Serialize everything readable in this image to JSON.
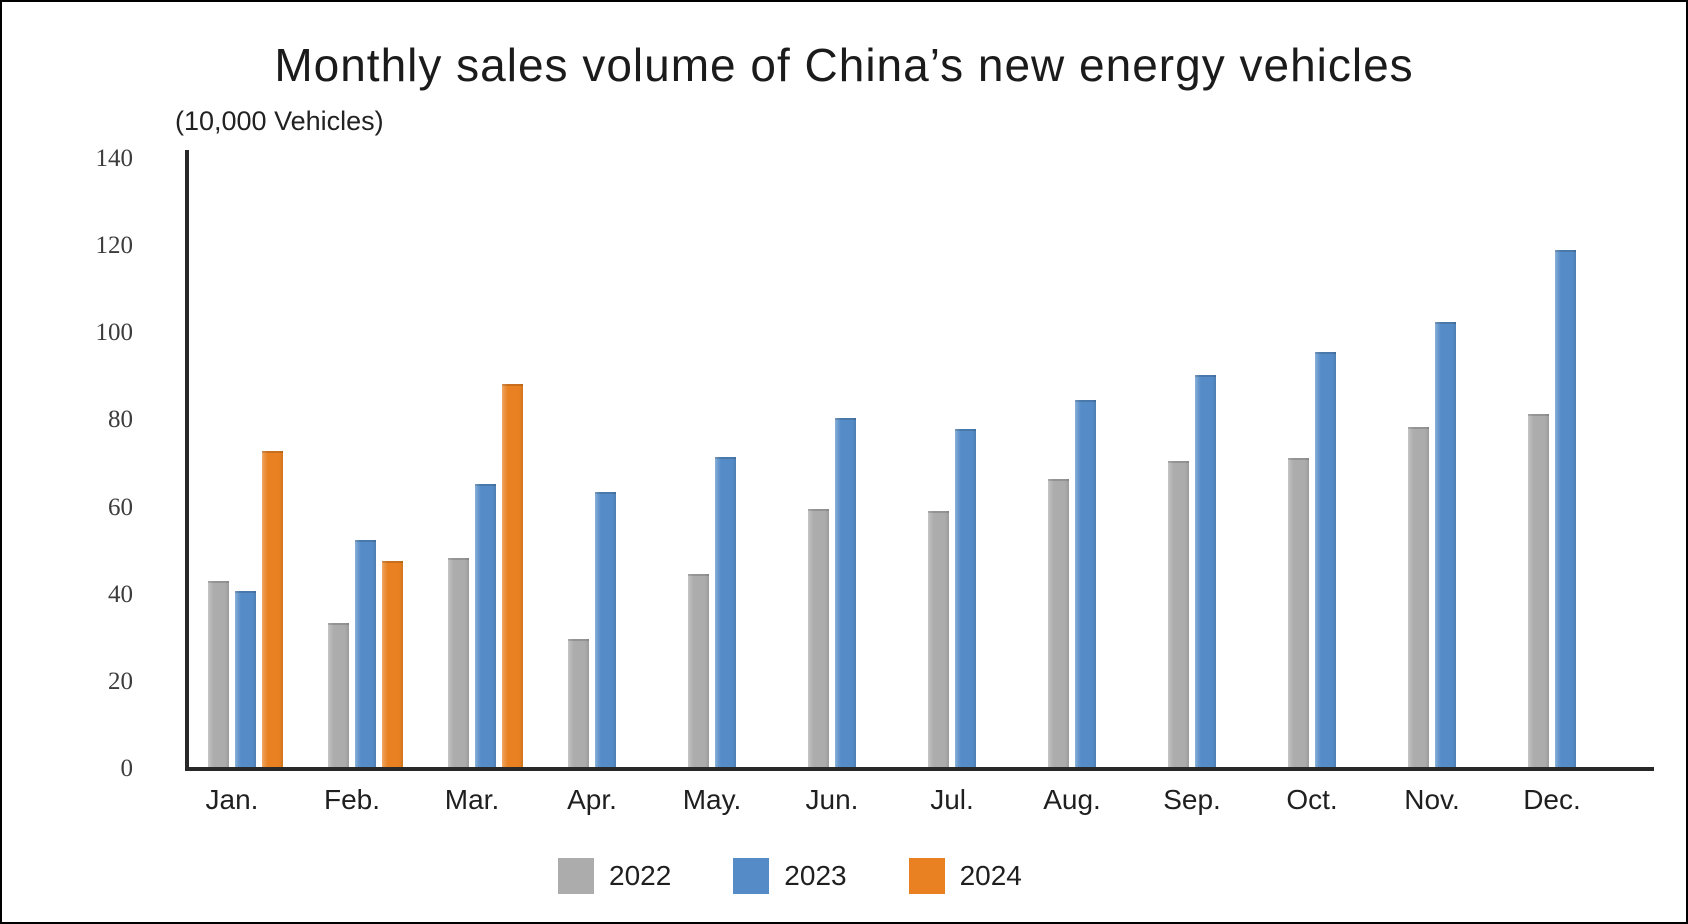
{
  "title": "Monthly sales volume of China’s new energy vehicles",
  "unit_label": "(10,000 Vehicles)",
  "colors": {
    "series_2022": "#ACACAC",
    "series_2023": "#558CC8",
    "series_2024": "#E98122",
    "axis": "#282828",
    "text": "#1F1F1F"
  },
  "legend": [
    {
      "label": "2022",
      "color": "#ACACAC"
    },
    {
      "label": "2023",
      "color": "#558CC8"
    },
    {
      "label": "2024",
      "color": "#E98122"
    }
  ],
  "chart_data": {
    "type": "bar",
    "title": "Monthly sales volume of China’s new energy vehicles",
    "ylabel": "(10,000 Vehicles)",
    "xlabel": "",
    "categories": [
      "Jan.",
      "Feb.",
      "Mar.",
      "Apr.",
      "May.",
      "Jun.",
      "Jul.",
      "Aug.",
      "Sep.",
      "Oct.",
      "Nov.",
      "Dec."
    ],
    "series": [
      {
        "name": "2022",
        "color": "#ACACAC",
        "values": [
          43.1,
          33.4,
          48.4,
          29.9,
          44.7,
          59.6,
          59.3,
          66.6,
          70.8,
          71.4,
          78.6,
          81.4
        ]
      },
      {
        "name": "2023",
        "color": "#558CC8",
        "values": [
          40.8,
          52.5,
          65.3,
          63.6,
          71.7,
          80.6,
          78.0,
          84.6,
          90.4,
          95.6,
          102.6,
          119.1
        ]
      },
      {
        "name": "2024",
        "color": "#E98122",
        "values": [
          72.9,
          47.7,
          88.3,
          null,
          null,
          null,
          null,
          null,
          null,
          null,
          null,
          null
        ]
      }
    ],
    "ylim": [
      0,
      140
    ],
    "yticks": [
      0,
      20,
      40,
      60,
      80,
      100,
      120,
      140
    ],
    "grid": false,
    "legend_position": "bottom"
  }
}
